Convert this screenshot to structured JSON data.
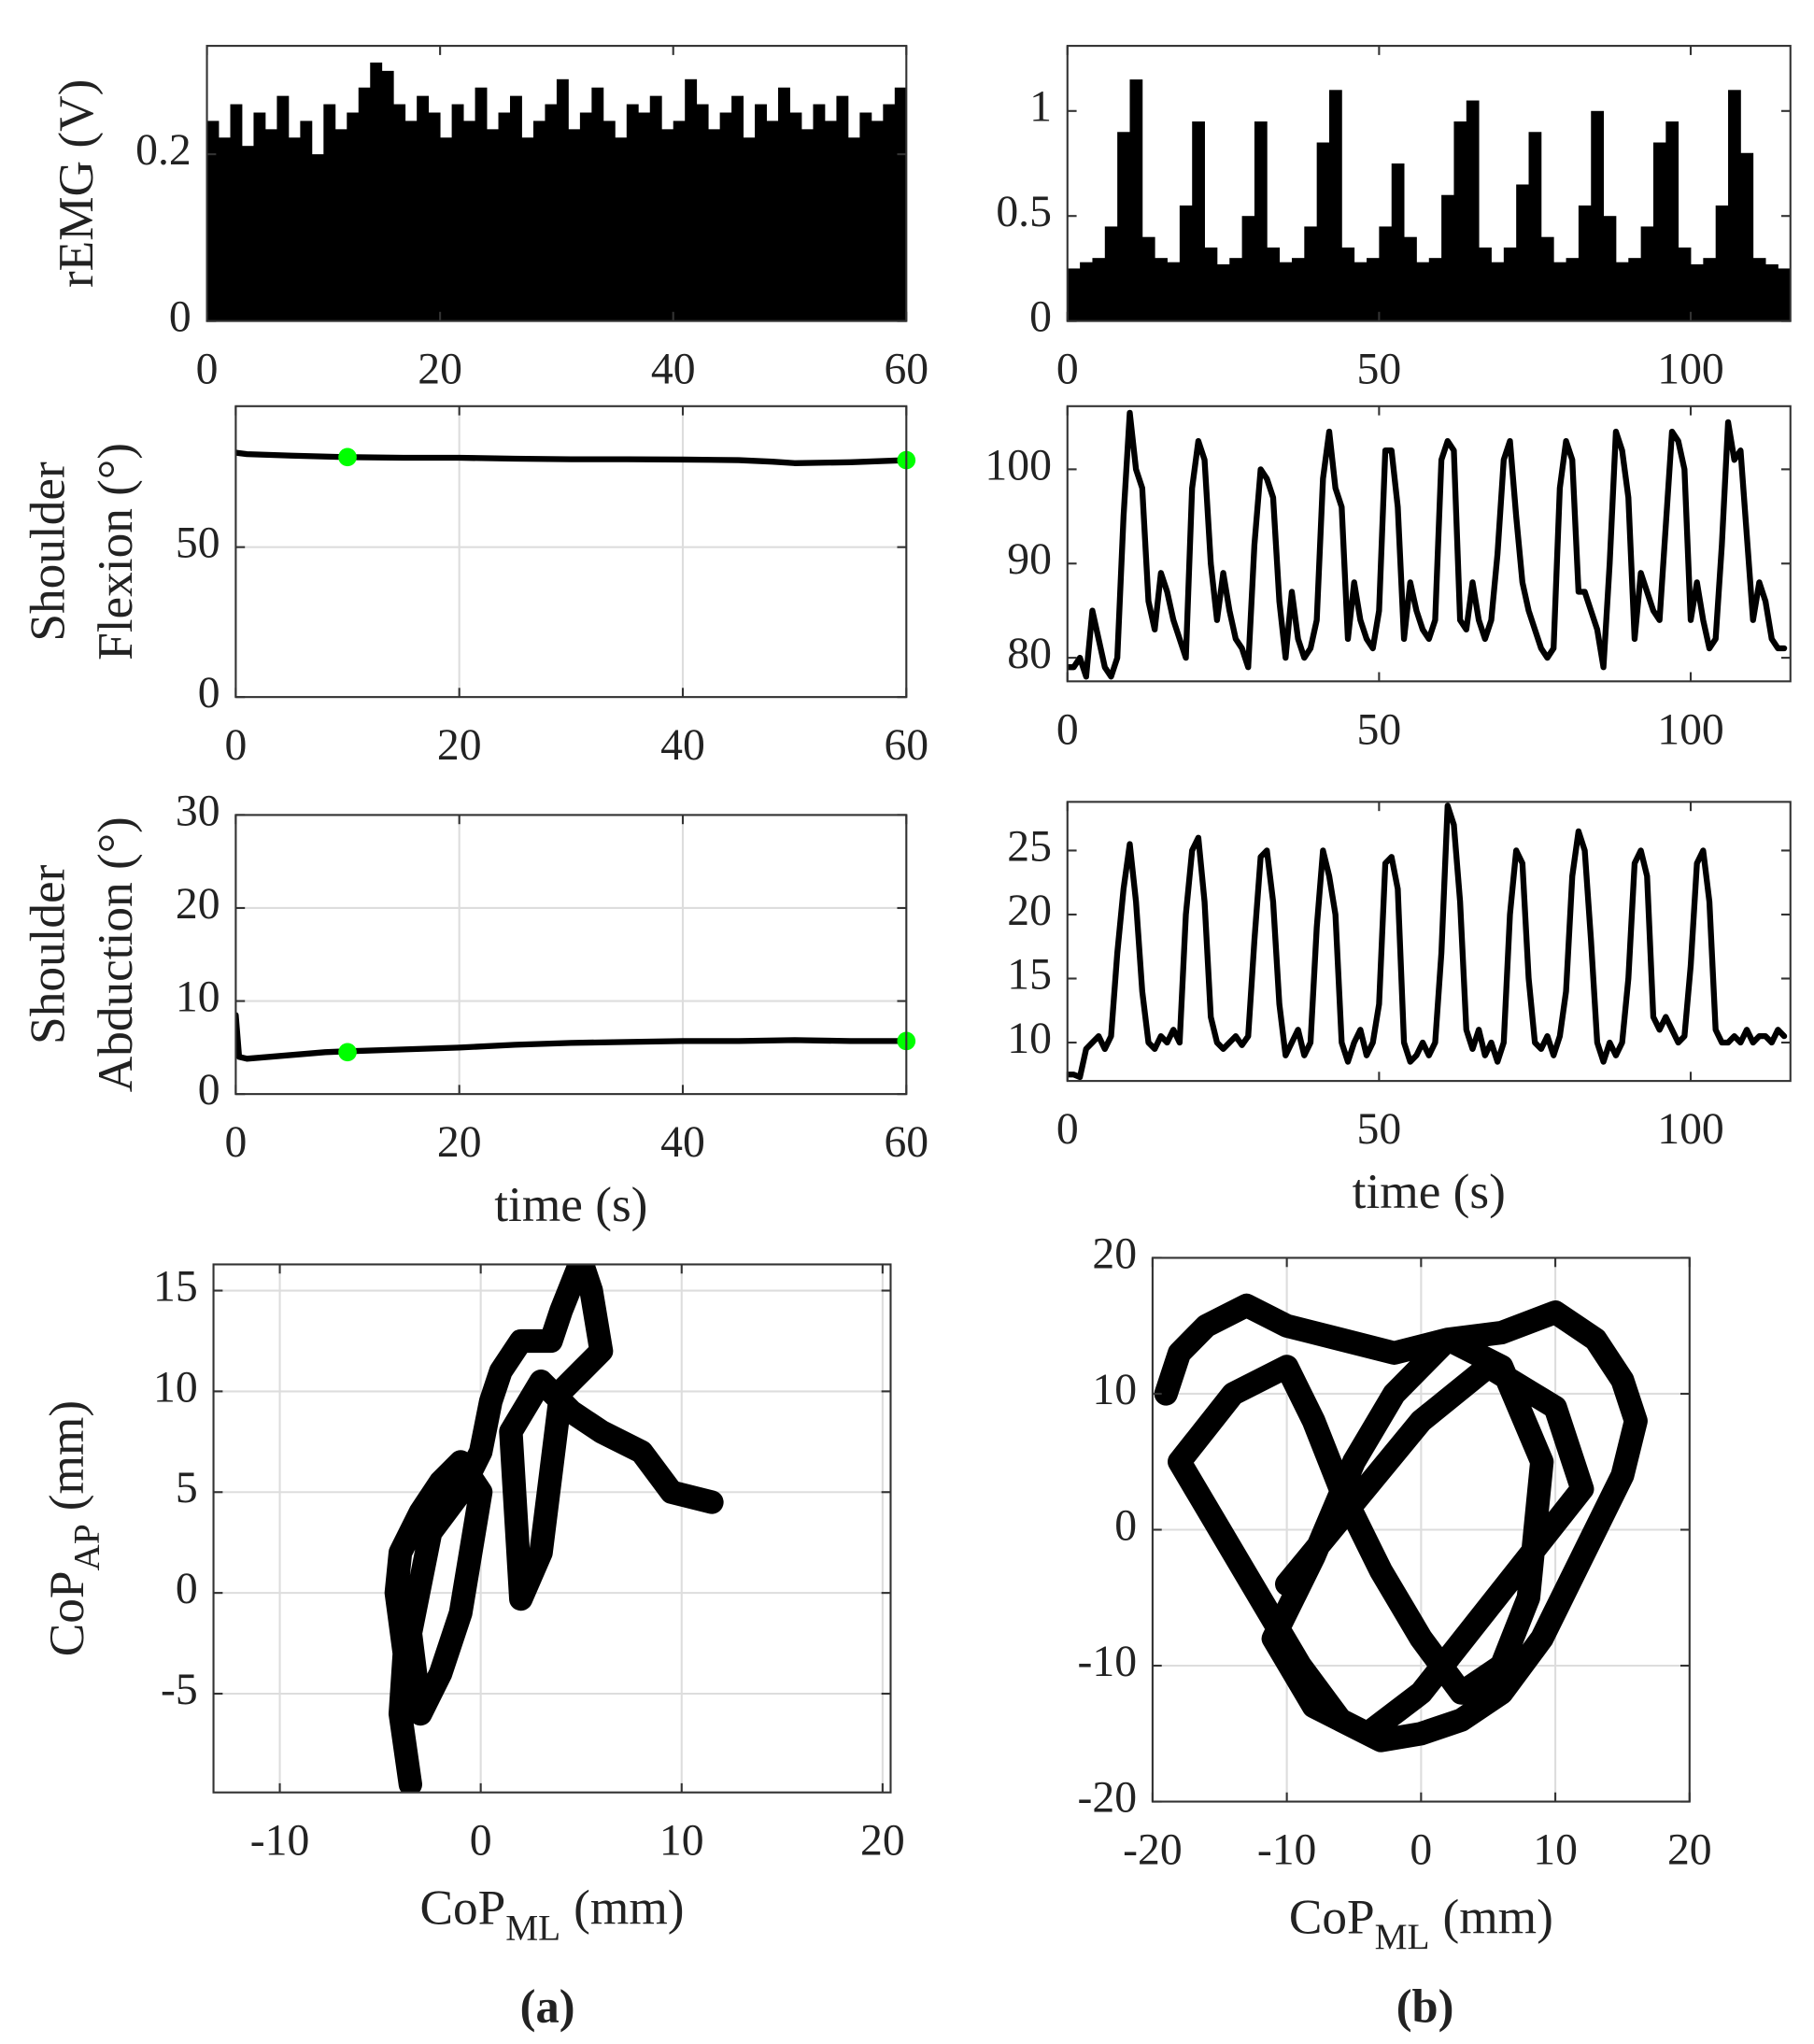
{
  "chart_data": [
    {
      "type": "bar",
      "ylabel": "rEMG (V)",
      "color": "#000000",
      "grid": false,
      "xlim": [
        0,
        60
      ],
      "ylim": [
        0,
        0.33
      ],
      "xticks": [
        0,
        20,
        40,
        60
      ],
      "yticks": [
        0,
        0.2
      ],
      "x": [
        0.5,
        1.5,
        2.5,
        3.5,
        4.5,
        5.5,
        6.5,
        7.5,
        8.5,
        9.5,
        10.5,
        11.5,
        12.5,
        13.5,
        14.5,
        15.5,
        16.5,
        17.5,
        18.5,
        19.5,
        20.5,
        21.5,
        22.5,
        23.5,
        24.5,
        25.5,
        26.5,
        27.5,
        28.5,
        29.5,
        30.5,
        31.5,
        32.5,
        33.5,
        34.5,
        35.5,
        36.5,
        37.5,
        38.5,
        39.5,
        40.5,
        41.5,
        42.5,
        43.5,
        44.5,
        45.5,
        46.5,
        47.5,
        48.5,
        49.5,
        50.5,
        51.5,
        52.5,
        53.5,
        54.5,
        55.5,
        56.5,
        57.5,
        58.5,
        59.5
      ],
      "values": [
        0.24,
        0.22,
        0.26,
        0.21,
        0.25,
        0.23,
        0.27,
        0.22,
        0.24,
        0.2,
        0.26,
        0.23,
        0.25,
        0.28,
        0.31,
        0.3,
        0.26,
        0.24,
        0.27,
        0.25,
        0.22,
        0.26,
        0.24,
        0.28,
        0.23,
        0.25,
        0.27,
        0.22,
        0.24,
        0.26,
        0.29,
        0.23,
        0.25,
        0.28,
        0.24,
        0.22,
        0.26,
        0.25,
        0.27,
        0.23,
        0.24,
        0.29,
        0.26,
        0.23,
        0.25,
        0.27,
        0.22,
        0.26,
        0.24,
        0.28,
        0.25,
        0.23,
        0.26,
        0.24,
        0.27,
        0.22,
        0.25,
        0.24,
        0.26,
        0.28
      ]
    },
    {
      "type": "bar",
      "color": "#000000",
      "grid": false,
      "xlim": [
        0,
        116
      ],
      "ylim": [
        0,
        1.31
      ],
      "xticks": [
        0,
        50,
        100
      ],
      "yticks": [
        0,
        0.5,
        1
      ],
      "x": [
        1,
        3,
        5,
        7,
        9,
        11,
        13,
        15,
        17,
        19,
        21,
        23,
        25,
        27,
        29,
        31,
        33,
        35,
        37,
        39,
        41,
        43,
        45,
        47,
        49,
        51,
        53,
        55,
        57,
        59,
        61,
        63,
        65,
        67,
        69,
        71,
        73,
        75,
        77,
        79,
        81,
        83,
        85,
        87,
        89,
        91,
        93,
        95,
        97,
        99,
        101,
        103,
        105,
        107,
        109,
        111,
        113,
        115
      ],
      "values": [
        0.25,
        0.28,
        0.3,
        0.45,
        0.9,
        1.15,
        0.4,
        0.3,
        0.28,
        0.55,
        0.95,
        0.35,
        0.27,
        0.3,
        0.5,
        0.95,
        0.35,
        0.28,
        0.3,
        0.45,
        0.85,
        1.1,
        0.35,
        0.28,
        0.3,
        0.45,
        0.75,
        0.4,
        0.28,
        0.3,
        0.6,
        0.95,
        1.05,
        0.35,
        0.28,
        0.35,
        0.65,
        0.9,
        0.4,
        0.28,
        0.3,
        0.55,
        1.0,
        0.5,
        0.28,
        0.3,
        0.45,
        0.85,
        0.95,
        0.35,
        0.27,
        0.3,
        0.55,
        1.1,
        0.8,
        0.3,
        0.27,
        0.25
      ]
    },
    {
      "type": "line",
      "ylabel": [
        "Shoulder",
        "Flexion (°)"
      ],
      "color": "#000000",
      "grid": true,
      "xlim": [
        0,
        60
      ],
      "ylim": [
        0,
        97
      ],
      "xticks": [
        0,
        20,
        40,
        60
      ],
      "yticks": [
        0,
        50
      ],
      "x": [
        0,
        1,
        5,
        10,
        15,
        20,
        25,
        30,
        35,
        40,
        45,
        48,
        50,
        55,
        60
      ],
      "values": [
        81.5,
        81,
        80.5,
        80,
        79.8,
        79.8,
        79.5,
        79.3,
        79.3,
        79.2,
        79,
        78.5,
        78,
        78.3,
        79
      ],
      "markers": {
        "color": "#00ff00",
        "x": [
          10,
          60
        ],
        "values": [
          80,
          79
        ]
      }
    },
    {
      "type": "line",
      "color": "#000000",
      "grid": false,
      "xlim": [
        0,
        116
      ],
      "ylim": [
        77.5,
        106.7
      ],
      "xticks": [
        0,
        50,
        100
      ],
      "yticks": [
        80,
        90,
        100
      ],
      "x": [
        0,
        1,
        2,
        3,
        4,
        5,
        6,
        7,
        8,
        9,
        10,
        11,
        12,
        13,
        14,
        15,
        16,
        17,
        18,
        19,
        20,
        21,
        22,
        23,
        24,
        25,
        26,
        27,
        28,
        29,
        30,
        31,
        32,
        33,
        34,
        35,
        36,
        37,
        38,
        39,
        40,
        41,
        42,
        43,
        44,
        45,
        46,
        47,
        48,
        49,
        50,
        51,
        52,
        53,
        54,
        55,
        56,
        57,
        58,
        59,
        60,
        61,
        62,
        63,
        64,
        65,
        66,
        67,
        68,
        69,
        70,
        71,
        72,
        73,
        74,
        75,
        76,
        77,
        78,
        79,
        80,
        81,
        82,
        83,
        84,
        85,
        86,
        87,
        88,
        89,
        90,
        91,
        92,
        93,
        94,
        95,
        96,
        97,
        98,
        99,
        100,
        101,
        102,
        103,
        104,
        105,
        106,
        107,
        108,
        109,
        110,
        111,
        112,
        113,
        114,
        115
      ],
      "values": [
        79,
        79,
        80,
        78,
        85,
        82,
        79,
        78,
        80,
        95,
        106,
        100,
        98,
        86,
        83,
        89,
        87,
        84,
        82,
        80,
        98,
        103,
        101,
        90,
        84,
        89,
        85,
        82,
        81,
        79,
        92,
        100,
        99,
        97,
        86,
        80,
        87,
        82,
        80,
        81,
        84,
        99,
        104,
        98,
        96,
        82,
        88,
        84,
        82,
        81,
        85,
        102,
        102,
        96,
        82,
        88,
        85,
        83,
        82,
        84,
        101,
        103,
        102,
        84,
        83,
        88,
        84,
        82,
        84,
        91,
        101,
        103,
        95,
        88,
        85,
        83,
        81,
        80,
        81,
        98,
        103,
        101,
        87,
        87,
        85,
        83,
        79,
        90,
        104,
        102,
        97,
        82,
        89,
        87,
        85,
        84,
        94,
        104,
        103,
        100,
        84,
        88,
        84,
        81,
        82,
        92,
        105,
        101,
        102,
        93,
        84,
        88,
        86,
        82,
        81,
        81
      ]
    },
    {
      "type": "line",
      "ylabel": [
        "Shoulder",
        "Abduction (°)"
      ],
      "xlabel": "time (s)",
      "color": "#000000",
      "grid": true,
      "xlim": [
        0,
        60
      ],
      "ylim": [
        0,
        30
      ],
      "xticks": [
        0,
        20,
        40,
        60
      ],
      "yticks": [
        0,
        10,
        20,
        30
      ],
      "x": [
        0,
        0.3,
        1,
        5,
        8,
        10,
        15,
        20,
        25,
        30,
        35,
        40,
        45,
        50,
        55,
        60
      ],
      "values": [
        8.5,
        4,
        3.8,
        4.2,
        4.5,
        4.6,
        4.8,
        5,
        5.3,
        5.5,
        5.6,
        5.7,
        5.7,
        5.8,
        5.7,
        5.7
      ],
      "markers": {
        "color": "#00ff00",
        "x": [
          10,
          60
        ],
        "values": [
          4.5,
          5.7
        ]
      }
    },
    {
      "type": "line",
      "xlabel": "time (s)",
      "color": "#000000",
      "grid": false,
      "xlim": [
        0,
        116
      ],
      "ylim": [
        7,
        28.8
      ],
      "xticks": [
        0,
        50,
        100
      ],
      "yticks": [
        10,
        15,
        20,
        25
      ],
      "x": [
        0,
        1,
        2,
        3,
        4,
        5,
        6,
        7,
        8,
        9,
        10,
        11,
        12,
        13,
        14,
        15,
        16,
        17,
        18,
        19,
        20,
        21,
        22,
        23,
        24,
        25,
        26,
        27,
        28,
        29,
        30,
        31,
        32,
        33,
        34,
        35,
        36,
        37,
        38,
        39,
        40,
        41,
        42,
        43,
        44,
        45,
        46,
        47,
        48,
        49,
        50,
        51,
        52,
        53,
        54,
        55,
        56,
        57,
        58,
        59,
        60,
        61,
        62,
        63,
        64,
        65,
        66,
        67,
        68,
        69,
        70,
        71,
        72,
        73,
        74,
        75,
        76,
        77,
        78,
        79,
        80,
        81,
        82,
        83,
        84,
        85,
        86,
        87,
        88,
        89,
        90,
        91,
        92,
        93,
        94,
        95,
        96,
        97,
        98,
        99,
        100,
        101,
        102,
        103,
        104,
        105,
        106,
        107,
        108,
        109,
        110,
        111,
        112,
        113,
        114,
        115
      ],
      "values": [
        7.5,
        7.5,
        7.3,
        9.5,
        10,
        10.5,
        9.5,
        10.5,
        17,
        22,
        25.5,
        21,
        14,
        10,
        9.5,
        10.5,
        10,
        11,
        10,
        20,
        25,
        26,
        21,
        12,
        10,
        9.5,
        10,
        10.5,
        9.8,
        10.5,
        18,
        24.5,
        25,
        21,
        13,
        9,
        10,
        11,
        9,
        10,
        19,
        25,
        23,
        20,
        10,
        8.5,
        10,
        11,
        9,
        10,
        13,
        24,
        24.5,
        22,
        10,
        8.5,
        9,
        10,
        9,
        10,
        17,
        28.5,
        27,
        21,
        11,
        9.5,
        11,
        9,
        10,
        8.5,
        10,
        20,
        25,
        24,
        15,
        10,
        9.5,
        10.5,
        9,
        10.5,
        14,
        23,
        26.5,
        25,
        18,
        10,
        8.5,
        10,
        9,
        10,
        15,
        24,
        25,
        23,
        12,
        11,
        12,
        11,
        10,
        10.5,
        16,
        24,
        25,
        21,
        11,
        10,
        10,
        10.5,
        10,
        11,
        10,
        10.5,
        10.5,
        10,
        11,
        10.5
      ]
    },
    {
      "type": "path",
      "xlabel": {
        "text": "CoP",
        "sub": "ML",
        "unit": "(mm)"
      },
      "ylabel": {
        "text": "CoP",
        "sub": "AP",
        "unit": "(mm)"
      },
      "color": "#000000",
      "grid": true,
      "xlim": [
        -13.3,
        20.4
      ],
      "ylim": [
        -9.9,
        16.3
      ],
      "xticks": [
        -10,
        0,
        10,
        20
      ],
      "yticks": [
        -5,
        0,
        5,
        10,
        15
      ],
      "x": [
        -3.5,
        -4,
        -3.8,
        -4.2,
        -4,
        -3,
        -2,
        -1,
        0,
        -0.5,
        -1,
        -2,
        -3,
        -3.5,
        -2.5,
        -1,
        0,
        0.5,
        1,
        2,
        3.5,
        4,
        5,
        5.5,
        6,
        5,
        4,
        3.5,
        3,
        2,
        1.5,
        3,
        4.5,
        6,
        8,
        9.5,
        11.5
      ],
      "values": [
        -9.5,
        -6,
        -3,
        0,
        2,
        4,
        5.5,
        6.5,
        5,
        2,
        -1,
        -4,
        -6,
        -2,
        3,
        5,
        7,
        9.5,
        11,
        12.5,
        12.5,
        14,
        16.5,
        15,
        12,
        11,
        10,
        6,
        2,
        -0.3,
        8,
        10.5,
        9,
        8,
        7,
        5,
        4.5
      ]
    },
    {
      "type": "path",
      "xlabel": {
        "text": "CoP",
        "sub": "ML",
        "unit": "(mm)"
      },
      "color": "#000000",
      "grid": true,
      "xlim": [
        -20,
        20
      ],
      "ylim": [
        -20,
        20
      ],
      "xticks": [
        -20,
        -10,
        0,
        10,
        20
      ],
      "yticks": [
        -20,
        -10,
        0,
        10,
        20
      ],
      "x": [
        -19,
        -18,
        -16,
        -13,
        -10,
        -6,
        -2,
        2,
        6,
        10,
        13,
        15,
        16,
        15,
        12,
        9,
        6,
        3,
        0,
        -3,
        -6,
        -9,
        -12,
        -15,
        -18,
        -14,
        -10,
        -8,
        -6,
        -3,
        0,
        3,
        6,
        8,
        9,
        6,
        2,
        -2,
        -5,
        -8,
        -11,
        -8,
        -4,
        0,
        4,
        8,
        12,
        10,
        5,
        0,
        -5,
        -10
      ],
      "values": [
        10,
        13,
        15,
        16.5,
        15,
        14,
        13,
        14,
        14.5,
        16,
        14,
        11,
        8,
        4,
        -2,
        -8,
        -12,
        -14,
        -15,
        -15.5,
        -14,
        -10,
        -5,
        0,
        5,
        10,
        12,
        8,
        3,
        -3,
        -8,
        -12,
        -10,
        -5,
        5,
        12,
        14,
        10,
        5,
        -2,
        -8,
        -13,
        -15,
        -12,
        -7,
        -2,
        3,
        9,
        12,
        8,
        2,
        -4
      ]
    }
  ],
  "captions": [
    "(a)",
    "(b)"
  ]
}
